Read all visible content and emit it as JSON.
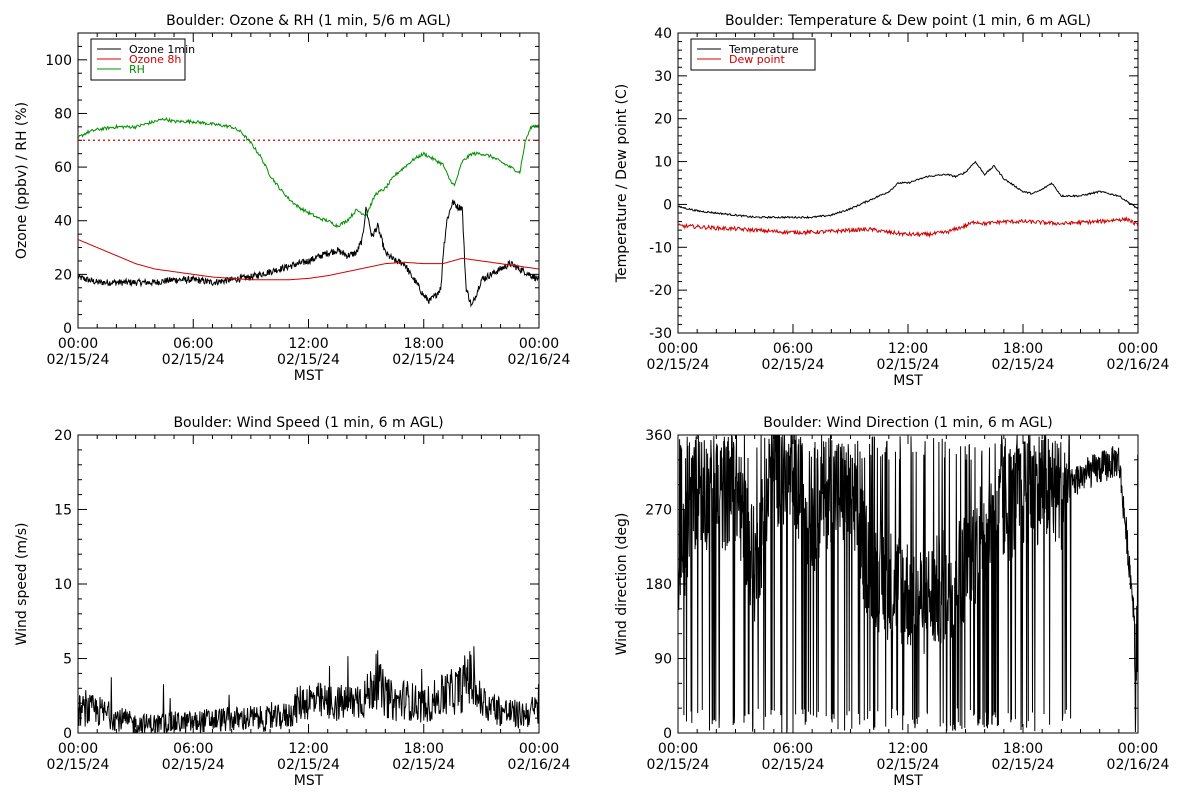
{
  "colors": {
    "black": "#000000",
    "red": "#d00000",
    "green": "#009000"
  },
  "chart_data": [
    {
      "type": "line",
      "title": "Boulder: Ozone & RH (1 min, 5/6 m AGL)",
      "xlabel": "MST",
      "ylabel": "Ozone (ppbv) / RH (%)",
      "xlim": [
        0,
        24
      ],
      "ylim": [
        0,
        110
      ],
      "yticks": [
        0,
        20,
        40,
        60,
        80,
        100
      ],
      "xticks": [
        {
          "time": "00:00",
          "date": "02/15/24"
        },
        {
          "time": "06:00",
          "date": "02/15/24"
        },
        {
          "time": "12:00",
          "date": "02/15/24"
        },
        {
          "time": "18:00",
          "date": "02/15/24"
        },
        {
          "time": "00:00",
          "date": "02/16/24"
        }
      ],
      "legend": [
        "Ozone 1min",
        "Ozone 8h",
        "RH"
      ],
      "legend_position": "top-left",
      "reference_line": {
        "y": 70,
        "style": "dotted",
        "color": "#d00000"
      },
      "series": [
        {
          "name": "Ozone 1min",
          "color": "#000000",
          "noisy": true,
          "x": [
            0,
            1,
            2,
            3,
            4,
            5,
            6,
            7,
            8,
            9,
            10,
            11,
            12,
            13,
            13.5,
            14,
            14.5,
            14.8,
            15,
            15.3,
            15.6,
            16,
            16.5,
            17,
            17.3,
            17.6,
            18,
            18.3,
            18.6,
            18.9,
            19,
            19.2,
            19.5,
            19.8,
            20,
            20.2,
            20.5,
            21,
            21.5,
            22,
            22.5,
            23,
            23.5,
            24
          ],
          "y": [
            19,
            17,
            17,
            17,
            17,
            18,
            18,
            17,
            18,
            19,
            21,
            23,
            25,
            28,
            29,
            27,
            28,
            33,
            45,
            34,
            38,
            28,
            25,
            24,
            20,
            17,
            12,
            10,
            12,
            15,
            27,
            40,
            47,
            45,
            45,
            15,
            8,
            18,
            20,
            22,
            24,
            22,
            20,
            18
          ]
        },
        {
          "name": "Ozone 8h",
          "color": "#d00000",
          "noisy": false,
          "x": [
            0,
            1,
            2,
            3,
            4,
            5,
            6,
            7,
            8,
            9,
            10,
            11,
            12,
            13,
            14,
            15,
            16,
            17,
            18,
            19,
            20,
            21,
            22,
            23,
            24
          ],
          "y": [
            33,
            30,
            27,
            24,
            22,
            21,
            20,
            19,
            18.5,
            18,
            18,
            18,
            18.5,
            19.5,
            21,
            22.5,
            24,
            24.5,
            24,
            24,
            26,
            25,
            24,
            23,
            22
          ]
        },
        {
          "name": "RH",
          "color": "#009000",
          "noisy": false,
          "x": [
            0,
            0.5,
            1,
            2,
            3,
            4,
            4.5,
            5,
            6,
            7,
            8,
            8.5,
            9,
            9.5,
            10,
            10.5,
            11,
            11.5,
            12,
            12.5,
            13,
            13.5,
            14,
            14.5,
            15,
            15.5,
            16,
            16.5,
            17,
            17.5,
            18,
            18.5,
            19,
            19.3,
            19.6,
            20,
            20.5,
            21,
            21.5,
            22,
            22.5,
            23,
            23.3,
            23.6,
            24
          ],
          "y": [
            71,
            73,
            74,
            75,
            75,
            77,
            78,
            77,
            77,
            76,
            75,
            73,
            69,
            64,
            57,
            52,
            48,
            45,
            43,
            41,
            40,
            38,
            40,
            44,
            42,
            50,
            52,
            57,
            60,
            63,
            65,
            63,
            61,
            56,
            53,
            62,
            65,
            65,
            64,
            62,
            60,
            58,
            70,
            75,
            76
          ]
        }
      ]
    },
    {
      "type": "line",
      "title": "Boulder: Temperature & Dew point (1 min, 6 m AGL)",
      "xlabel": "MST",
      "ylabel": "Temperature / Dew point (C)",
      "xlim": [
        0,
        24
      ],
      "ylim": [
        -30,
        40
      ],
      "yticks": [
        -30,
        -20,
        -10,
        0,
        10,
        20,
        30,
        40
      ],
      "xticks": [
        {
          "time": "00:00",
          "date": "02/15/24"
        },
        {
          "time": "06:00",
          "date": "02/15/24"
        },
        {
          "time": "12:00",
          "date": "02/15/24"
        },
        {
          "time": "18:00",
          "date": "02/15/24"
        },
        {
          "time": "00:00",
          "date": "02/16/24"
        }
      ],
      "legend": [
        "Temperature",
        "Dew point"
      ],
      "legend_position": "top-left",
      "series": [
        {
          "name": "Temperature",
          "color": "#000000",
          "noisy": false,
          "x": [
            0,
            1,
            2,
            3,
            4,
            5,
            6,
            7,
            8,
            9,
            10,
            11,
            11.5,
            12,
            13,
            14,
            14.5,
            15,
            15.5,
            16,
            16.5,
            17,
            18,
            18.5,
            19,
            19.5,
            20,
            21,
            22,
            23,
            24
          ],
          "y": [
            -0.5,
            -1.5,
            -2,
            -2.5,
            -3,
            -3,
            -3,
            -3,
            -2.5,
            -1,
            1,
            3,
            5,
            5,
            6.5,
            7,
            6.5,
            7.5,
            10,
            7,
            9,
            6,
            3,
            2.5,
            3.5,
            5,
            2,
            2,
            3,
            2,
            -1
          ]
        },
        {
          "name": "Dew point",
          "color": "#d00000",
          "noisy": false,
          "x": [
            0,
            1,
            2,
            3,
            4,
            5,
            6,
            7,
            8,
            9,
            10,
            11,
            12,
            13,
            14,
            15,
            15.5,
            16,
            17,
            18,
            19,
            20,
            21,
            22,
            23,
            23.5,
            24
          ],
          "y": [
            -5,
            -5.2,
            -5.5,
            -5.7,
            -6,
            -6.3,
            -6.5,
            -6.5,
            -6.3,
            -6,
            -5.8,
            -6.5,
            -7,
            -7,
            -6.5,
            -5,
            -4,
            -4.5,
            -4,
            -4,
            -4.2,
            -4.5,
            -4.2,
            -4,
            -3.5,
            -3.5,
            -5
          ]
        }
      ]
    },
    {
      "type": "line",
      "title": "Boulder: Wind Speed (1 min, 6 m AGL)",
      "xlabel": "MST",
      "ylabel": "Wind speed (m/s)",
      "xlim": [
        0,
        24
      ],
      "ylim": [
        0,
        20
      ],
      "yticks": [
        0,
        5,
        10,
        15,
        20
      ],
      "xticks": [
        {
          "time": "00:00",
          "date": "02/15/24"
        },
        {
          "time": "06:00",
          "date": "02/15/24"
        },
        {
          "time": "12:00",
          "date": "02/15/24"
        },
        {
          "time": "18:00",
          "date": "02/15/24"
        },
        {
          "time": "00:00",
          "date": "02/16/24"
        }
      ],
      "series": [
        {
          "color": "#000000",
          "noisy": true,
          "x": [
            0,
            1,
            2,
            3,
            4,
            5,
            6,
            7,
            8,
            9,
            10,
            11,
            11.5,
            12,
            13,
            14,
            15,
            15.5,
            16,
            16.5,
            17,
            18,
            19,
            20,
            20.3,
            21,
            22,
            23,
            24
          ],
          "y": [
            1.5,
            1.5,
            1,
            0.6,
            0.6,
            0.7,
            0.7,
            0.9,
            0.9,
            1,
            0.9,
            1.2,
            2,
            2.2,
            2,
            2,
            2.4,
            3.5,
            2.5,
            2,
            2.3,
            1.8,
            2.5,
            3,
            4,
            2,
            1.5,
            1.2,
            1.6
          ]
        }
      ]
    },
    {
      "type": "line",
      "title": "Boulder: Wind Direction (1 min, 6 m AGL)",
      "xlabel": "MST",
      "ylabel": "Wind direction (deg)",
      "xlim": [
        0,
        24
      ],
      "ylim": [
        0,
        360
      ],
      "yticks": [
        0,
        90,
        180,
        270,
        360
      ],
      "xticks": [
        {
          "time": "00:00",
          "date": "02/15/24"
        },
        {
          "time": "06:00",
          "date": "02/15/24"
        },
        {
          "time": "12:00",
          "date": "02/15/24"
        },
        {
          "time": "18:00",
          "date": "02/15/24"
        },
        {
          "time": "00:00",
          "date": "02/16/24"
        }
      ],
      "series": [
        {
          "color": "#000000",
          "noisy": true,
          "x": [
            0,
            1,
            2,
            3,
            4,
            5,
            6,
            7,
            8,
            9,
            10,
            11,
            12,
            13,
            14,
            15,
            16,
            17,
            18,
            19,
            20,
            21,
            22,
            23,
            24
          ],
          "y": [
            180,
            300,
            280,
            300,
            200,
            320,
            310,
            260,
            300,
            280,
            200,
            180,
            170,
            160,
            180,
            200,
            250,
            270,
            290,
            300,
            290,
            310,
            320,
            330,
            100
          ]
        }
      ]
    }
  ]
}
